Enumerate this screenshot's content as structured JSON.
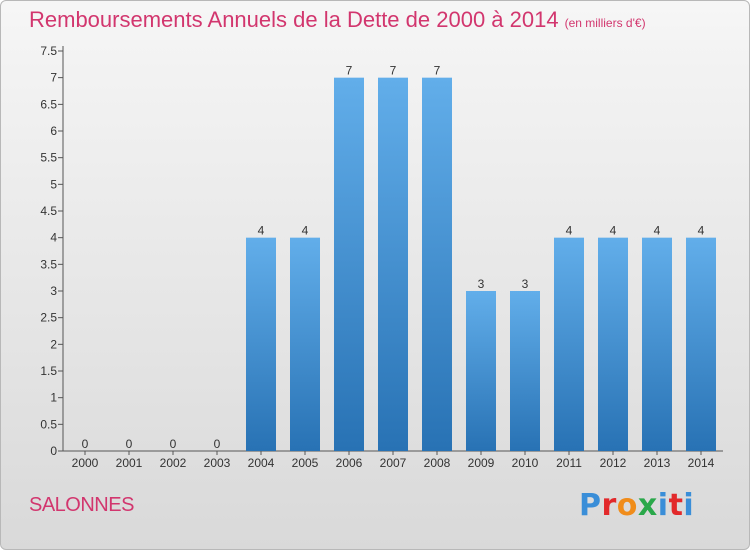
{
  "header": {
    "title": "Remboursements Annuels de la Dette de 2000 à 2014",
    "subtitle": "(en milliers d'€)"
  },
  "footer": {
    "commune": "SALONNES",
    "logo_text": "Proxiti",
    "logo_colors": [
      "#3a8ed8",
      "#e2292b",
      "#f08c1a",
      "#2aa84a",
      "#3a8ed8",
      "#e2292b",
      "#3a8ed8"
    ]
  },
  "chart_data": {
    "type": "bar",
    "categories": [
      "2000",
      "2001",
      "2002",
      "2003",
      "2004",
      "2005",
      "2006",
      "2007",
      "2008",
      "2009",
      "2010",
      "2011",
      "2012",
      "2013",
      "2014"
    ],
    "values": [
      0,
      0,
      0,
      0,
      4,
      4,
      7,
      7,
      7,
      3,
      3,
      4,
      4,
      4,
      4
    ],
    "data_labels": [
      "0",
      "0",
      "0",
      "0",
      "4",
      "4",
      "7",
      "7",
      "7",
      "3",
      "3",
      "4",
      "4",
      "4",
      "4"
    ],
    "yticks": [
      "0",
      "0.5",
      "1",
      "1.5",
      "2",
      "2.5",
      "3",
      "3.5",
      "4",
      "4.5",
      "5",
      "5.5",
      "6",
      "6.5",
      "7",
      "7.5"
    ],
    "ylim": [
      0,
      7.5
    ],
    "grid": false,
    "bar_color": "#3d8fd6",
    "title_color": "#d2366e"
  }
}
